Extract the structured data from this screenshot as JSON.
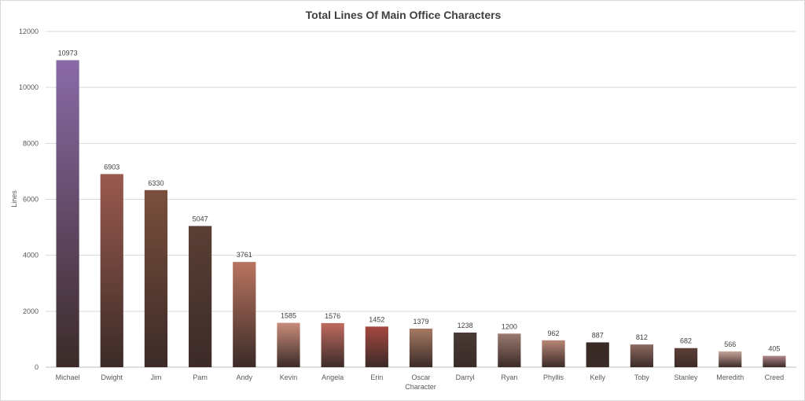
{
  "chart_data": {
    "type": "bar",
    "title": "Total Lines Of Main Office Characters",
    "xlabel": "Character",
    "ylabel": "Lines",
    "ylim": [
      0,
      12000
    ],
    "yticks": [
      0,
      2000,
      4000,
      6000,
      8000,
      10000,
      12000
    ],
    "grid": true,
    "categories": [
      "Michael",
      "Dwight",
      "Jim",
      "Pam",
      "Andy",
      "Kevin",
      "Angela",
      "Erin",
      "Oscar",
      "Darryl",
      "Ryan",
      "Phyllis",
      "Kelly",
      "Toby",
      "Stanley",
      "Meredith",
      "Creed"
    ],
    "values": [
      10973,
      6903,
      6330,
      5047,
      3761,
      1585,
      1576,
      1452,
      1379,
      1238,
      1200,
      962,
      887,
      812,
      682,
      566,
      405
    ],
    "bar_fill": "character photo image fill",
    "bar_colors": [
      "#8a6aa8",
      "#9b5a4e",
      "#7a4f3c",
      "#5a3f35",
      "#b9745f",
      "#c98d7a",
      "#c06b5f",
      "#a4483f",
      "#a67a62",
      "#4a3a35",
      "#9a7a70",
      "#b88675",
      "#3a2a25",
      "#8e6a62",
      "#5e4038",
      "#c6a59a",
      "#b0878a"
    ]
  }
}
